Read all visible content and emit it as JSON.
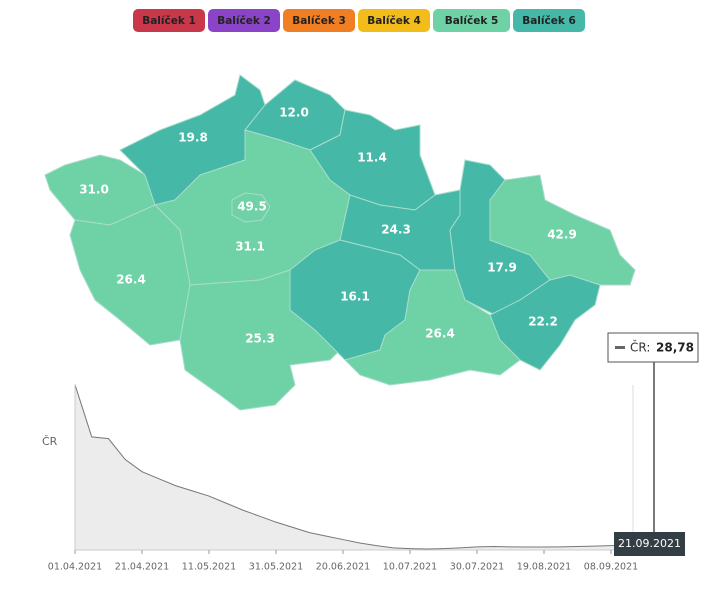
{
  "legend": {
    "items": [
      {
        "label": "Balíček 1",
        "color": "#c9374a"
      },
      {
        "label": "Balíček 2",
        "color": "#8b44c8"
      },
      {
        "label": "Balíček 3",
        "color": "#f07e22"
      },
      {
        "label": "Balíček 4",
        "color": "#f2bc1b"
      },
      {
        "label": "Balíček 5",
        "color": "#6fd1a6"
      },
      {
        "label": "Balíček 6",
        "color": "#45b8a8"
      }
    ]
  },
  "map": {
    "regions": [
      {
        "label": "31.0",
        "color": "#6fd1a6"
      },
      {
        "label": "19.8",
        "color": "#45b8a8"
      },
      {
        "label": "12.0",
        "color": "#45b8a8"
      },
      {
        "label": "11.4",
        "color": "#45b8a8"
      },
      {
        "label": "31.1",
        "color": "#6fd1a6"
      },
      {
        "label": "49.5",
        "color": "#6fd1a6"
      },
      {
        "label": "26.4",
        "color": "#6fd1a6"
      },
      {
        "label": "25.3",
        "color": "#6fd1a6"
      },
      {
        "label": "24.3",
        "color": "#45b8a8"
      },
      {
        "label": "16.1",
        "color": "#45b8a8"
      },
      {
        "label": "26.4",
        "color": "#6fd1a6"
      },
      {
        "label": "17.9",
        "color": "#45b8a8"
      },
      {
        "label": "42.9",
        "color": "#6fd1a6"
      },
      {
        "label": "22.2",
        "color": "#45b8a8"
      }
    ]
  },
  "chart": {
    "type": "area",
    "label": "ČR",
    "xticks": [
      "01.04.2021",
      "21.04.2021",
      "11.05.2021",
      "31.05.2021",
      "20.06.2021",
      "10.07.2021",
      "30.07.2021",
      "19.08.2021",
      "08.09.2021"
    ],
    "values": [
      950,
      650,
      640,
      520,
      450,
      410,
      370,
      340,
      310,
      270,
      230,
      195,
      160,
      130,
      100,
      80,
      60,
      40,
      25,
      12,
      8,
      6,
      8,
      12,
      18,
      20,
      18,
      17,
      17,
      18,
      20,
      22,
      25,
      30,
      35
    ],
    "ylim": [
      0,
      1000
    ]
  },
  "tooltip": {
    "series": "ČR:",
    "value": "28,78",
    "date": "21.09.2021"
  }
}
